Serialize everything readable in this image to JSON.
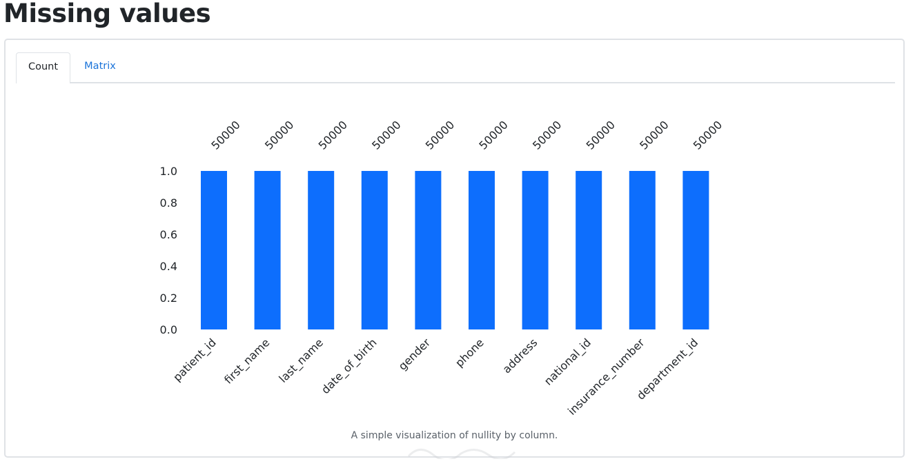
{
  "page": {
    "title": "Missing values"
  },
  "tabs": [
    {
      "label": "Count",
      "active": true
    },
    {
      "label": "Matrix",
      "active": false
    }
  ],
  "caption": "A simple visualization of nullity by column.",
  "colors": {
    "bar": "#0d6efd",
    "link": "#1a73d9",
    "text": "#212529"
  },
  "chart_data": {
    "type": "bar",
    "categories": [
      "patient_id",
      "first_name",
      "last_name",
      "date_of_birth",
      "gender",
      "phone",
      "address",
      "national_id",
      "insurance_number",
      "department_id"
    ],
    "values": [
      1.0,
      1.0,
      1.0,
      1.0,
      1.0,
      1.0,
      1.0,
      1.0,
      1.0,
      1.0
    ],
    "counts": [
      "50000",
      "50000",
      "50000",
      "50000",
      "50000",
      "50000",
      "50000",
      "50000",
      "50000",
      "50000"
    ],
    "ylim": [
      0,
      1
    ],
    "yticks": [
      "0.0",
      "0.2",
      "0.4",
      "0.6",
      "0.8",
      "1.0"
    ],
    "grid": false,
    "legend": "none"
  }
}
